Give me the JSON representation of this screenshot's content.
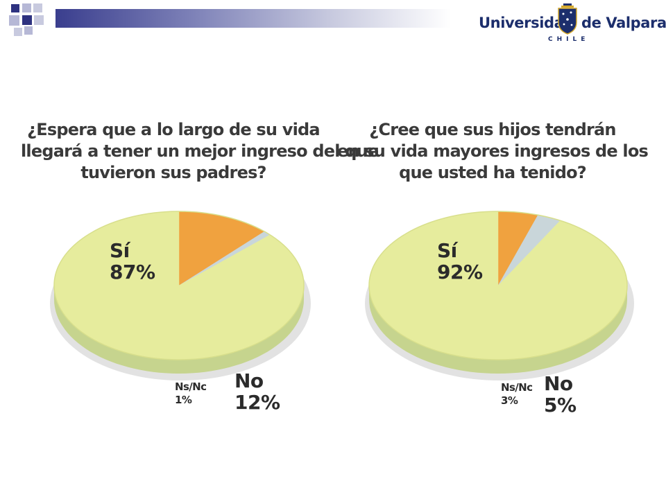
{
  "header": {
    "logo_left": "Universidad",
    "logo_right": "de Valparaíso",
    "logo_sub": "CHILE",
    "colors": {
      "navy": "#1c2e6c",
      "bar": "#3a3e8e",
      "square_light": "#b6b8d6"
    }
  },
  "chart_data": [
    {
      "type": "pie",
      "title": [
        "¿Espera que a lo largo de su vida",
        "llegará a tener un mejor ingreso del que",
        "tuvieron sus padres?"
      ],
      "slices": [
        {
          "key": "si",
          "label": "Sí",
          "value": 87,
          "value_label": "87%",
          "color": "#e6ec9d",
          "side": "#c6d48e"
        },
        {
          "key": "no",
          "label": "No",
          "value": 12,
          "value_label": "12%",
          "color": "#f0a23f",
          "side": "#dd8a2e"
        },
        {
          "key": "ns",
          "label": "Ns/Nc",
          "value": 1,
          "value_label": "1%",
          "color": "#c9d6da",
          "side": "#aab8bd"
        }
      ]
    },
    {
      "type": "pie",
      "title": [
        "¿Cree que sus hijos tendrán",
        "en su vida mayores ingresos de los",
        "que usted ha tenido?"
      ],
      "slices": [
        {
          "key": "si",
          "label": "Sí",
          "value": 92,
          "value_label": "92%",
          "color": "#e6ec9d",
          "side": "#c6d48e"
        },
        {
          "key": "no",
          "label": "No",
          "value": 5,
          "value_label": "5%",
          "color": "#f0a23f",
          "side": "#dd8a2e"
        },
        {
          "key": "ns",
          "label": "Ns/Nc",
          "value": 3,
          "value_label": "3%",
          "color": "#c9d6da",
          "side": "#aab8bd"
        }
      ]
    }
  ]
}
